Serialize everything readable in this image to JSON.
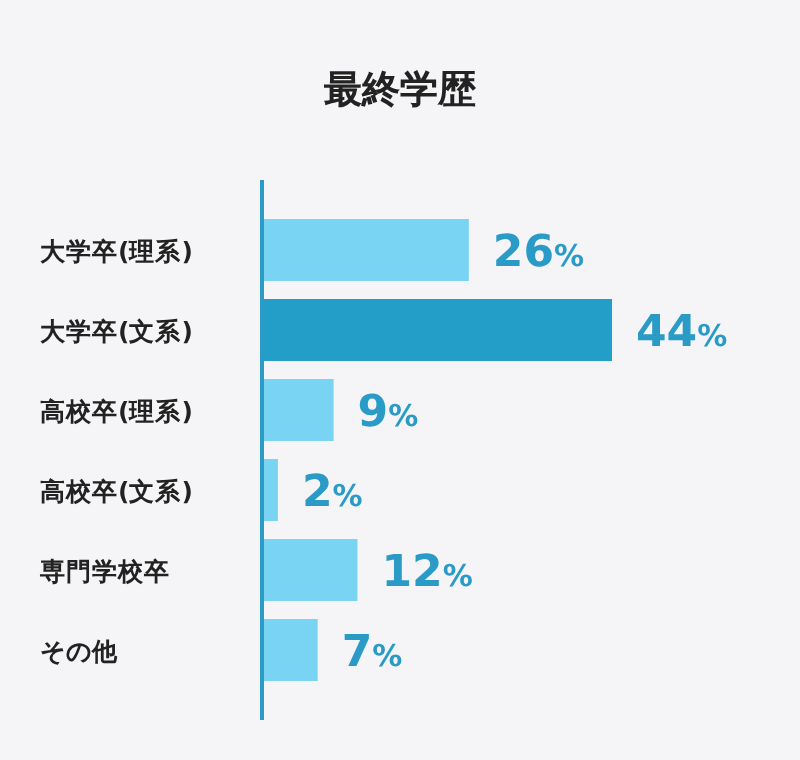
{
  "chart_data": {
    "type": "bar",
    "orientation": "horizontal",
    "title": "最終学歴",
    "categories": [
      "大学卒(理系)",
      "大学卒(文系)",
      "高校卒(理系)",
      "高校卒(文系)",
      "専門学校卒",
      "その他"
    ],
    "values": [
      26,
      44,
      9,
      2,
      12,
      7
    ],
    "colors": [
      "#79d4f3",
      "#239ec8",
      "#79d4f3",
      "#79d4f3",
      "#79d4f3",
      "#79d4f3"
    ],
    "value_labels": [
      "26%",
      "44%",
      "9%",
      "2%",
      "12%",
      "7%"
    ]
  }
}
